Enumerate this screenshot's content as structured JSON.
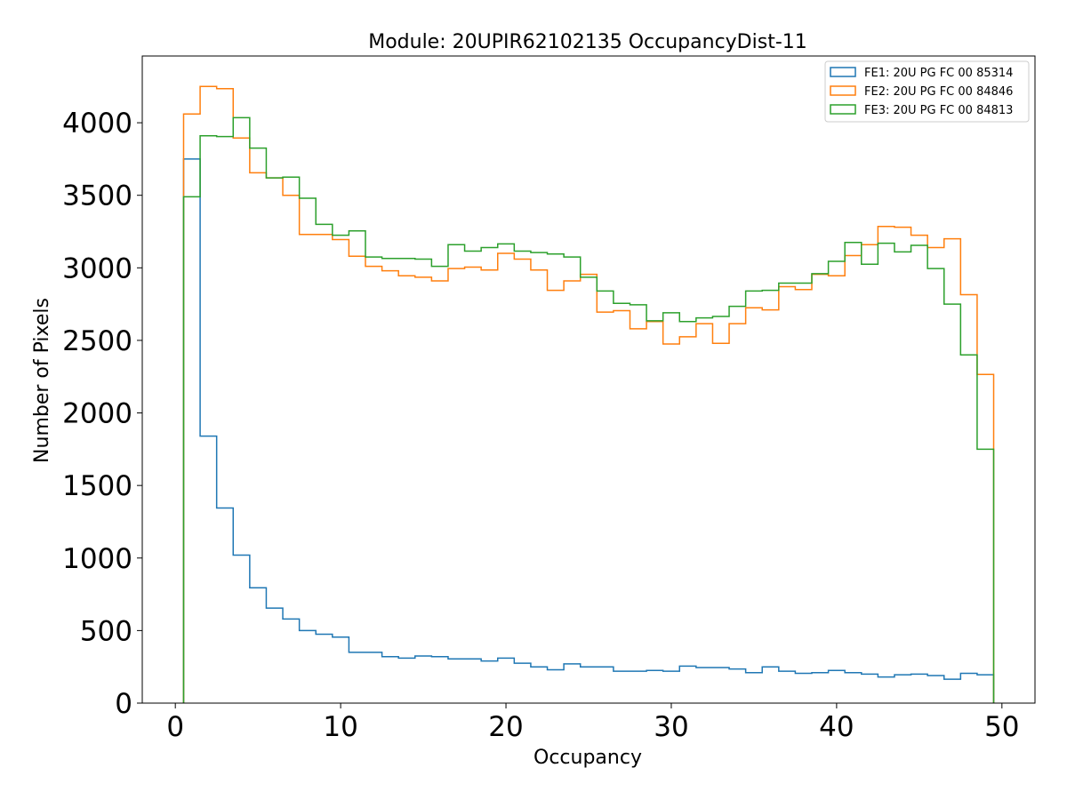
{
  "chart_data": {
    "type": "step",
    "title": "Module: 20UPIR62102135 OccupancyDist-11",
    "xlabel": "Occupancy",
    "ylabel": "Number of Pixels",
    "xlim": [
      -2,
      52
    ],
    "ylim": [
      0,
      4460
    ],
    "xticks": [
      0,
      10,
      20,
      30,
      40,
      50
    ],
    "yticks": [
      0,
      500,
      1000,
      1500,
      2000,
      2500,
      3000,
      3500,
      4000
    ],
    "legend_position": "upper-right",
    "bin_edges_start": 0.5,
    "bin_width": 1,
    "grid": false,
    "series": [
      {
        "name": "FE1: 20U PG FC 00 85314",
        "color": "#1f77b4",
        "values": [
          3750,
          1840,
          1345,
          1020,
          795,
          655,
          580,
          500,
          475,
          455,
          350,
          350,
          320,
          310,
          325,
          320,
          305,
          305,
          290,
          310,
          275,
          250,
          230,
          270,
          250,
          250,
          220,
          220,
          225,
          220,
          255,
          245,
          245,
          235,
          210,
          250,
          220,
          205,
          210,
          225,
          210,
          200,
          180,
          195,
          200,
          190,
          165,
          205,
          195
        ]
      },
      {
        "name": "FE2: 20U PG FC 00 84846",
        "color": "#ff7f0e",
        "values": [
          4060,
          4250,
          4235,
          3895,
          3655,
          3620,
          3500,
          3230,
          3230,
          3195,
          3080,
          3010,
          2980,
          2945,
          2935,
          2910,
          2995,
          3005,
          2985,
          3100,
          3060,
          2985,
          2845,
          2910,
          2955,
          2695,
          2705,
          2580,
          2630,
          2475,
          2525,
          2615,
          2480,
          2615,
          2725,
          2710,
          2870,
          2850,
          2955,
          2945,
          3085,
          3160,
          3285,
          3280,
          3225,
          3140,
          3200,
          2815,
          2265
        ]
      },
      {
        "name": "FE3: 20U PG FC 00 84813",
        "color": "#2ca02c",
        "values": [
          3490,
          3910,
          3905,
          4035,
          3825,
          3620,
          3625,
          3480,
          3300,
          3225,
          3255,
          3075,
          3065,
          3065,
          3060,
          3010,
          3160,
          3115,
          3140,
          3165,
          3115,
          3105,
          3095,
          3075,
          2935,
          2840,
          2755,
          2745,
          2635,
          2690,
          2630,
          2655,
          2665,
          2735,
          2840,
          2845,
          2895,
          2895,
          2960,
          3045,
          3175,
          3025,
          3170,
          3110,
          3155,
          2995,
          2750,
          2400,
          1750
        ]
      }
    ]
  }
}
